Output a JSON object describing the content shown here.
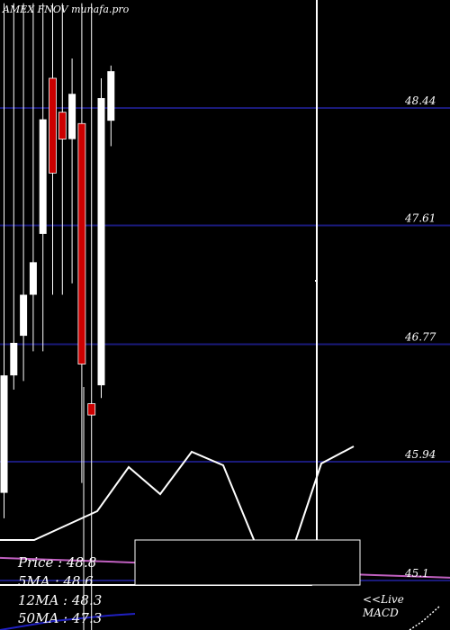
{
  "chart_data": {
    "type": "candlestick",
    "header": "AMEX  FNOV munafa.pro",
    "y_ticks": [
      48.44,
      47.61,
      46.77,
      45.94,
      45.1
    ],
    "y_tick_labels": [
      "48.44",
      "47.61",
      "46.77",
      "45.94",
      "45.1"
    ],
    "ylim": [
      44.72,
      49.18
    ],
    "grid": true,
    "candles": [
      {
        "open": 45.72,
        "high": 49.18,
        "low": 45.54,
        "close": 46.55
      },
      {
        "open": 46.55,
        "high": 49.18,
        "low": 46.45,
        "close": 46.78
      },
      {
        "open": 46.83,
        "high": 49.18,
        "low": 46.51,
        "close": 47.12
      },
      {
        "open": 47.12,
        "high": 49.18,
        "low": 46.72,
        "close": 47.35
      },
      {
        "open": 47.55,
        "high": 49.18,
        "low": 46.72,
        "close": 48.36
      },
      {
        "open": 48.65,
        "high": 49.18,
        "low": 47.12,
        "close": 47.98
      },
      {
        "open": 48.41,
        "high": 49.18,
        "low": 47.12,
        "close": 48.22
      },
      {
        "open": 48.22,
        "high": 48.79,
        "low": 47.2,
        "close": 48.54
      },
      {
        "open": 48.33,
        "high": 49.18,
        "low": 45.79,
        "close": 46.63
      },
      {
        "open": 46.35,
        "high": 49.18,
        "low": 44.72,
        "close": 46.27
      },
      {
        "open": 46.48,
        "high": 48.65,
        "low": 46.39,
        "close": 48.51
      },
      {
        "open": 48.35,
        "high": 48.74,
        "low": 48.17,
        "close": 48.7
      }
    ],
    "ma_series": [
      {
        "values": [
          45.26,
          45.25,
          45.24,
          45.23,
          45.22,
          45.2,
          45.18,
          45.16,
          45.15,
          45.14,
          45.13,
          45.12
        ]
      }
    ],
    "info_labels": {
      "price": "Price   : 48.8",
      "ma5": "5MA : 48.6",
      "ma12": "12MA : 48.3",
      "ma50": "50MA : 47.3"
    },
    "macd_label_1": "<<Live",
    "macd_label_2": "MACD",
    "colors": {
      "background": "#000000",
      "up": "#ffffff",
      "down": "#cc0000",
      "grid": "#1a1a7a",
      "ma": "#c060c0",
      "ma50_line": "#2020c0",
      "text": "#ffffff"
    }
  }
}
